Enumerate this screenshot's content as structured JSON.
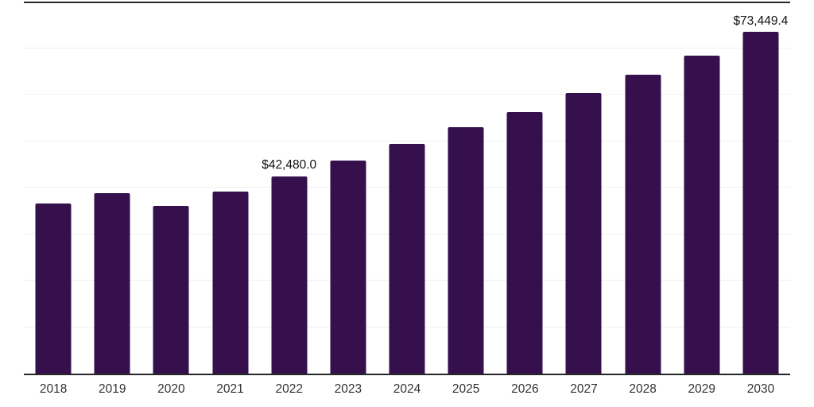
{
  "chart_data": {
    "type": "bar",
    "title": "",
    "xlabel": "",
    "ylabel": "",
    "categories": [
      "2018",
      "2019",
      "2020",
      "2021",
      "2022",
      "2023",
      "2024",
      "2025",
      "2026",
      "2027",
      "2028",
      "2029",
      "2030"
    ],
    "values": [
      36600,
      38800,
      36000,
      39100,
      42480.0,
      45800,
      49400,
      53000,
      56300,
      60300,
      64200,
      68400,
      73449.4
    ],
    "data_labels": [
      {
        "category": "2022",
        "text": "$42,480.0"
      },
      {
        "category": "2030",
        "text": "$73,449.4"
      }
    ],
    "ylim": [
      0,
      80000
    ],
    "grid_step": 10000,
    "grid": "on",
    "legend": "none",
    "y_tick_labels_visible": false,
    "colors": {
      "background": "#ffffff",
      "bar": "#35104D",
      "axis": "#262626",
      "gridline": "#f0f0f0",
      "x_labels": "#333333",
      "data_labels": "#111111"
    }
  }
}
